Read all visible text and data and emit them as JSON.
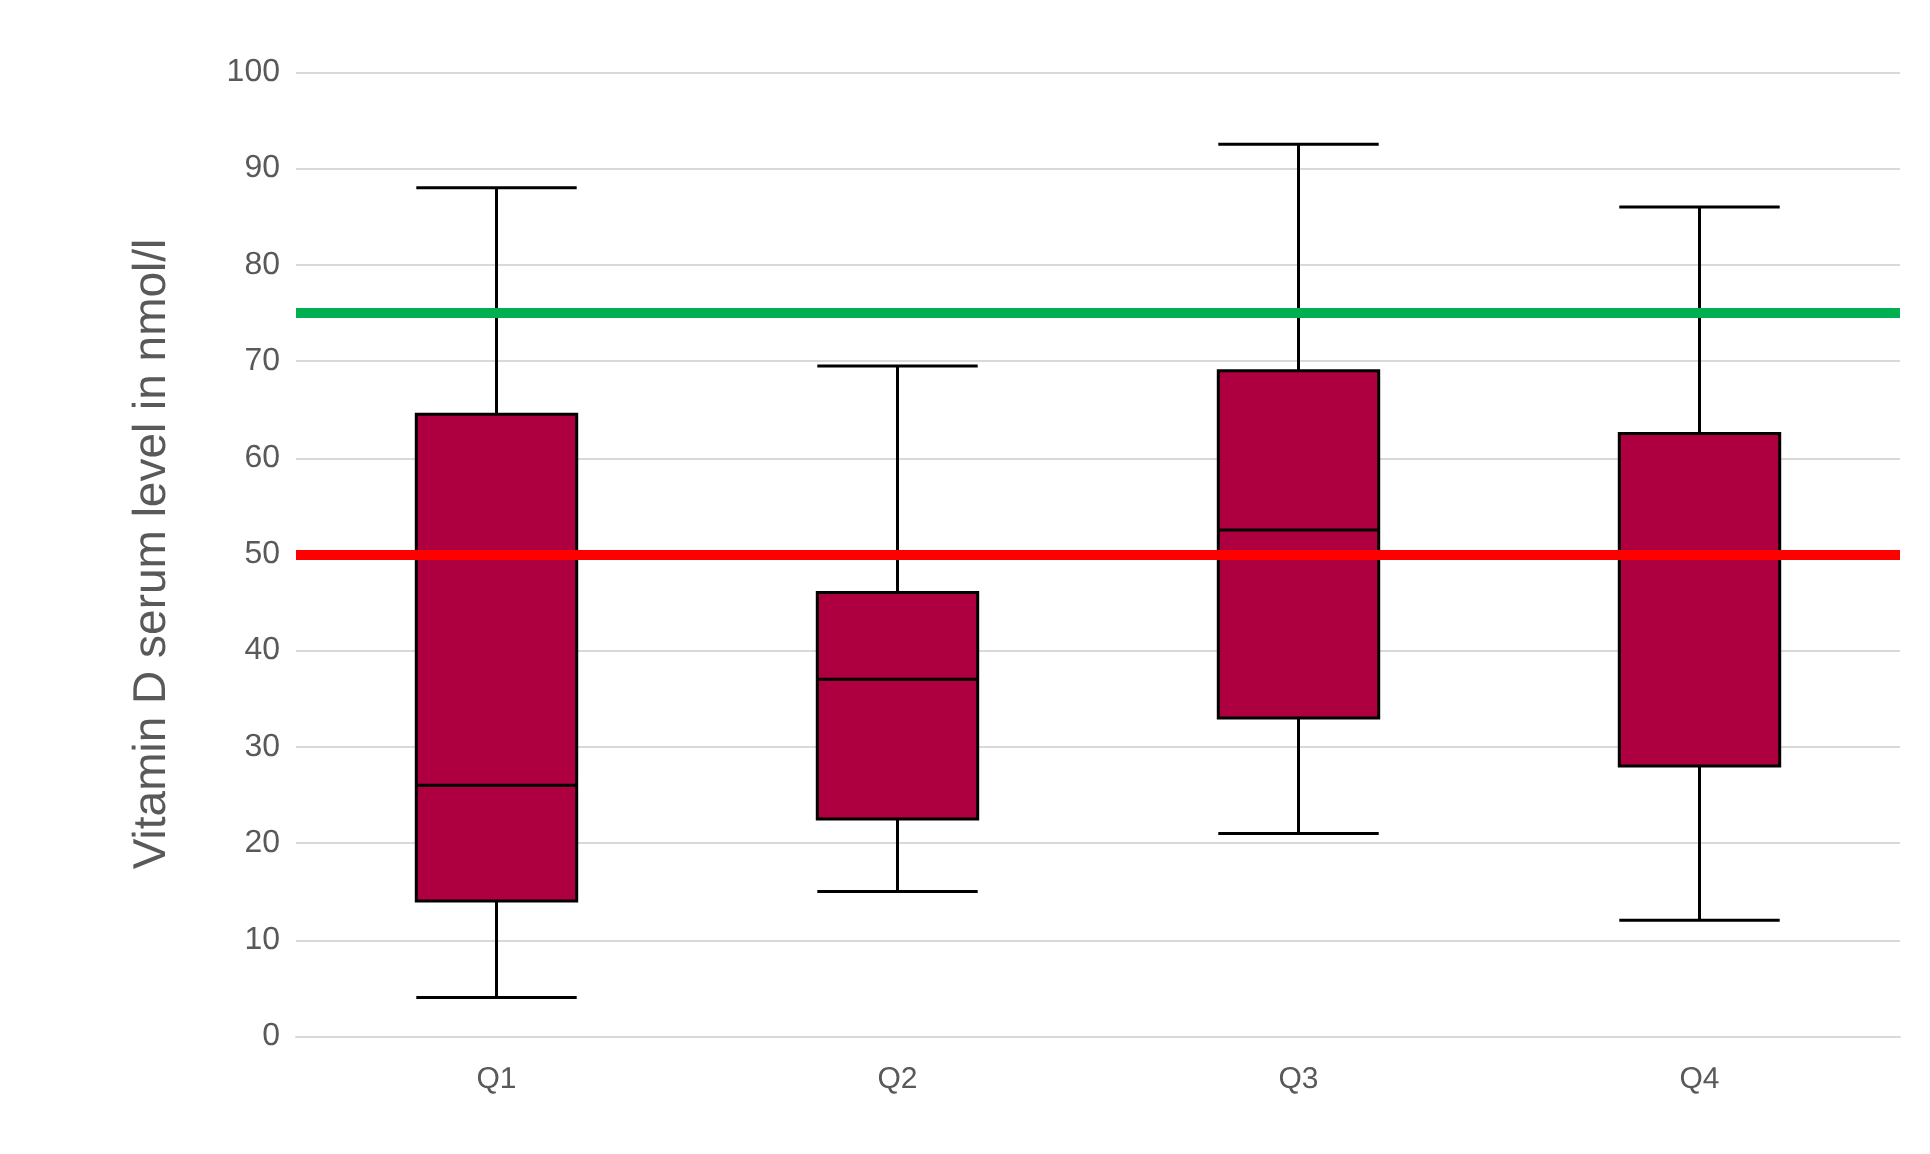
{
  "chart_data": {
    "type": "box",
    "ylabel": "Vitamin D serum level in nmol/l",
    "categories": [
      "Q1",
      "Q2",
      "Q3",
      "Q4"
    ],
    "color": "#ae0040",
    "boxes": [
      {
        "low": 4,
        "q1": 14,
        "median": 26,
        "q3": 64.5,
        "high": 88
      },
      {
        "low": 15,
        "q1": 22.5,
        "median": 37,
        "q3": 46,
        "high": 69.5
      },
      {
        "low": 21,
        "q1": 33,
        "median": 52.5,
        "q3": 69,
        "high": 92.5
      },
      {
        "low": 12,
        "q1": 28,
        "median": 50,
        "q3": 62.5,
        "high": 86
      }
    ],
    "ylim": [
      0,
      100
    ],
    "yticks": [
      0,
      10,
      20,
      30,
      40,
      50,
      60,
      70,
      80,
      90,
      100
    ],
    "grid": "y",
    "ref_lines": [
      {
        "axis": "y",
        "value": 75,
        "color": "#00b050"
      },
      {
        "axis": "y",
        "value": 50,
        "color": "#ff0000"
      }
    ]
  }
}
